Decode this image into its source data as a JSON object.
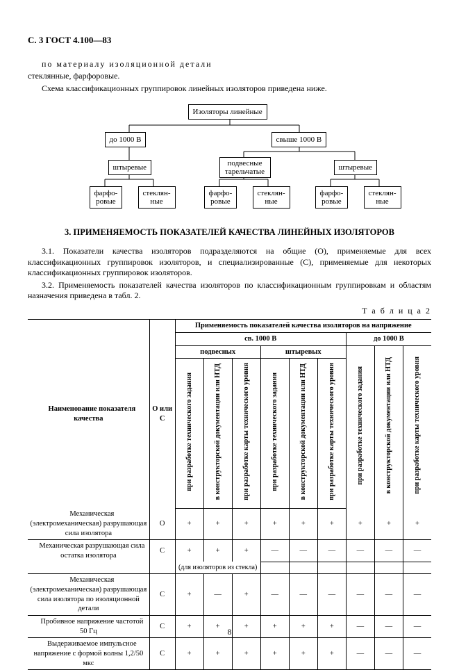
{
  "header": "С. 3 ГОСТ 4.100—83",
  "intro_line1": "по материалу изоляционной детали",
  "intro_line2": "стеклянные, фарфоровые.",
  "intro_line3": "Схема классификационных группировок линейных изоляторов приведена ниже.",
  "diagram": {
    "root": "Изоляторы линейные",
    "l1a": "до 1000 В",
    "l1b": "свыше 1000 В",
    "l2a": "штыревые",
    "l2b": "подвесные тарельчатые",
    "l2c": "штыревые",
    "leaf_a1": "фарфо-\nровые",
    "leaf_a2": "стеклян-\nные",
    "leaf_b1": "фарфо-\nровые",
    "leaf_b2": "стеклян-\nные",
    "leaf_c1": "фарфо-\nровые",
    "leaf_c2": "стеклян-\nные"
  },
  "section_title": "3. ПРИМЕНЯЕМОСТЬ ПОКАЗАТЕЛЕЙ КАЧЕСТВА ЛИНЕЙНЫХ ИЗОЛЯТОРОВ",
  "p31": "3.1. Показатели качества изоляторов подразделяются на общие (О), применяемые для всех классификационных группировок изоляторов, и специализированные (С), применяемые для некоторых классификационных группировок изоляторов.",
  "p32": "3.2. Применяемость показателей качества изоляторов по классификационным группировкам и областям назначения приведена в табл. 2.",
  "table_label": "Т а б л и ц а 2",
  "t2": {
    "head_main": "Применяемость показателей качества изоляторов на напряжение",
    "head_sv": "св. 1000 В",
    "head_do": "до 1000 В",
    "head_podv": "подвесных",
    "head_sht": "штыревых",
    "col_name": "Наименование показателя качества",
    "col_oc": "О или С",
    "vcol1": "при разработке технического задания",
    "vcol2": "в конструкторской документации или НТД",
    "vcol3": "при разработке карты технического уровня",
    "rows": [
      {
        "name": "Механическая (электромеханическая) разрушающая сила изолятора",
        "oc": "О",
        "v": [
          "+",
          "+",
          "+",
          "+",
          "+",
          "+",
          "+",
          "+",
          "+"
        ],
        "note": ""
      },
      {
        "name": "Механическая разрушающая сила остатка изолятора",
        "oc": "С",
        "v": [
          "+",
          "+",
          "+",
          "—",
          "—",
          "—",
          "—",
          "—",
          "—"
        ],
        "note": "(для изоляторов из стекла)"
      },
      {
        "name": "Механическая (электромеханическая) разрушающая сила изолятора по изоляционной детали",
        "oc": "С",
        "v": [
          "+",
          "—",
          "+",
          "—",
          "—",
          "—",
          "—",
          "—",
          "—"
        ],
        "note": ""
      },
      {
        "name": "Пробивное напряжение частотой 50 Гц",
        "oc": "С",
        "v": [
          "+",
          "+",
          "+",
          "+",
          "+",
          "+",
          "—",
          "—",
          "—"
        ],
        "note": ""
      },
      {
        "name": "Выдерживаемое импульсное напряжение с формой волны 1,2/50 мкс",
        "oc": "С",
        "v": [
          "+",
          "+",
          "+",
          "+",
          "+",
          "+",
          "—",
          "—",
          "—"
        ],
        "note": ""
      }
    ]
  },
  "page_number": "8"
}
